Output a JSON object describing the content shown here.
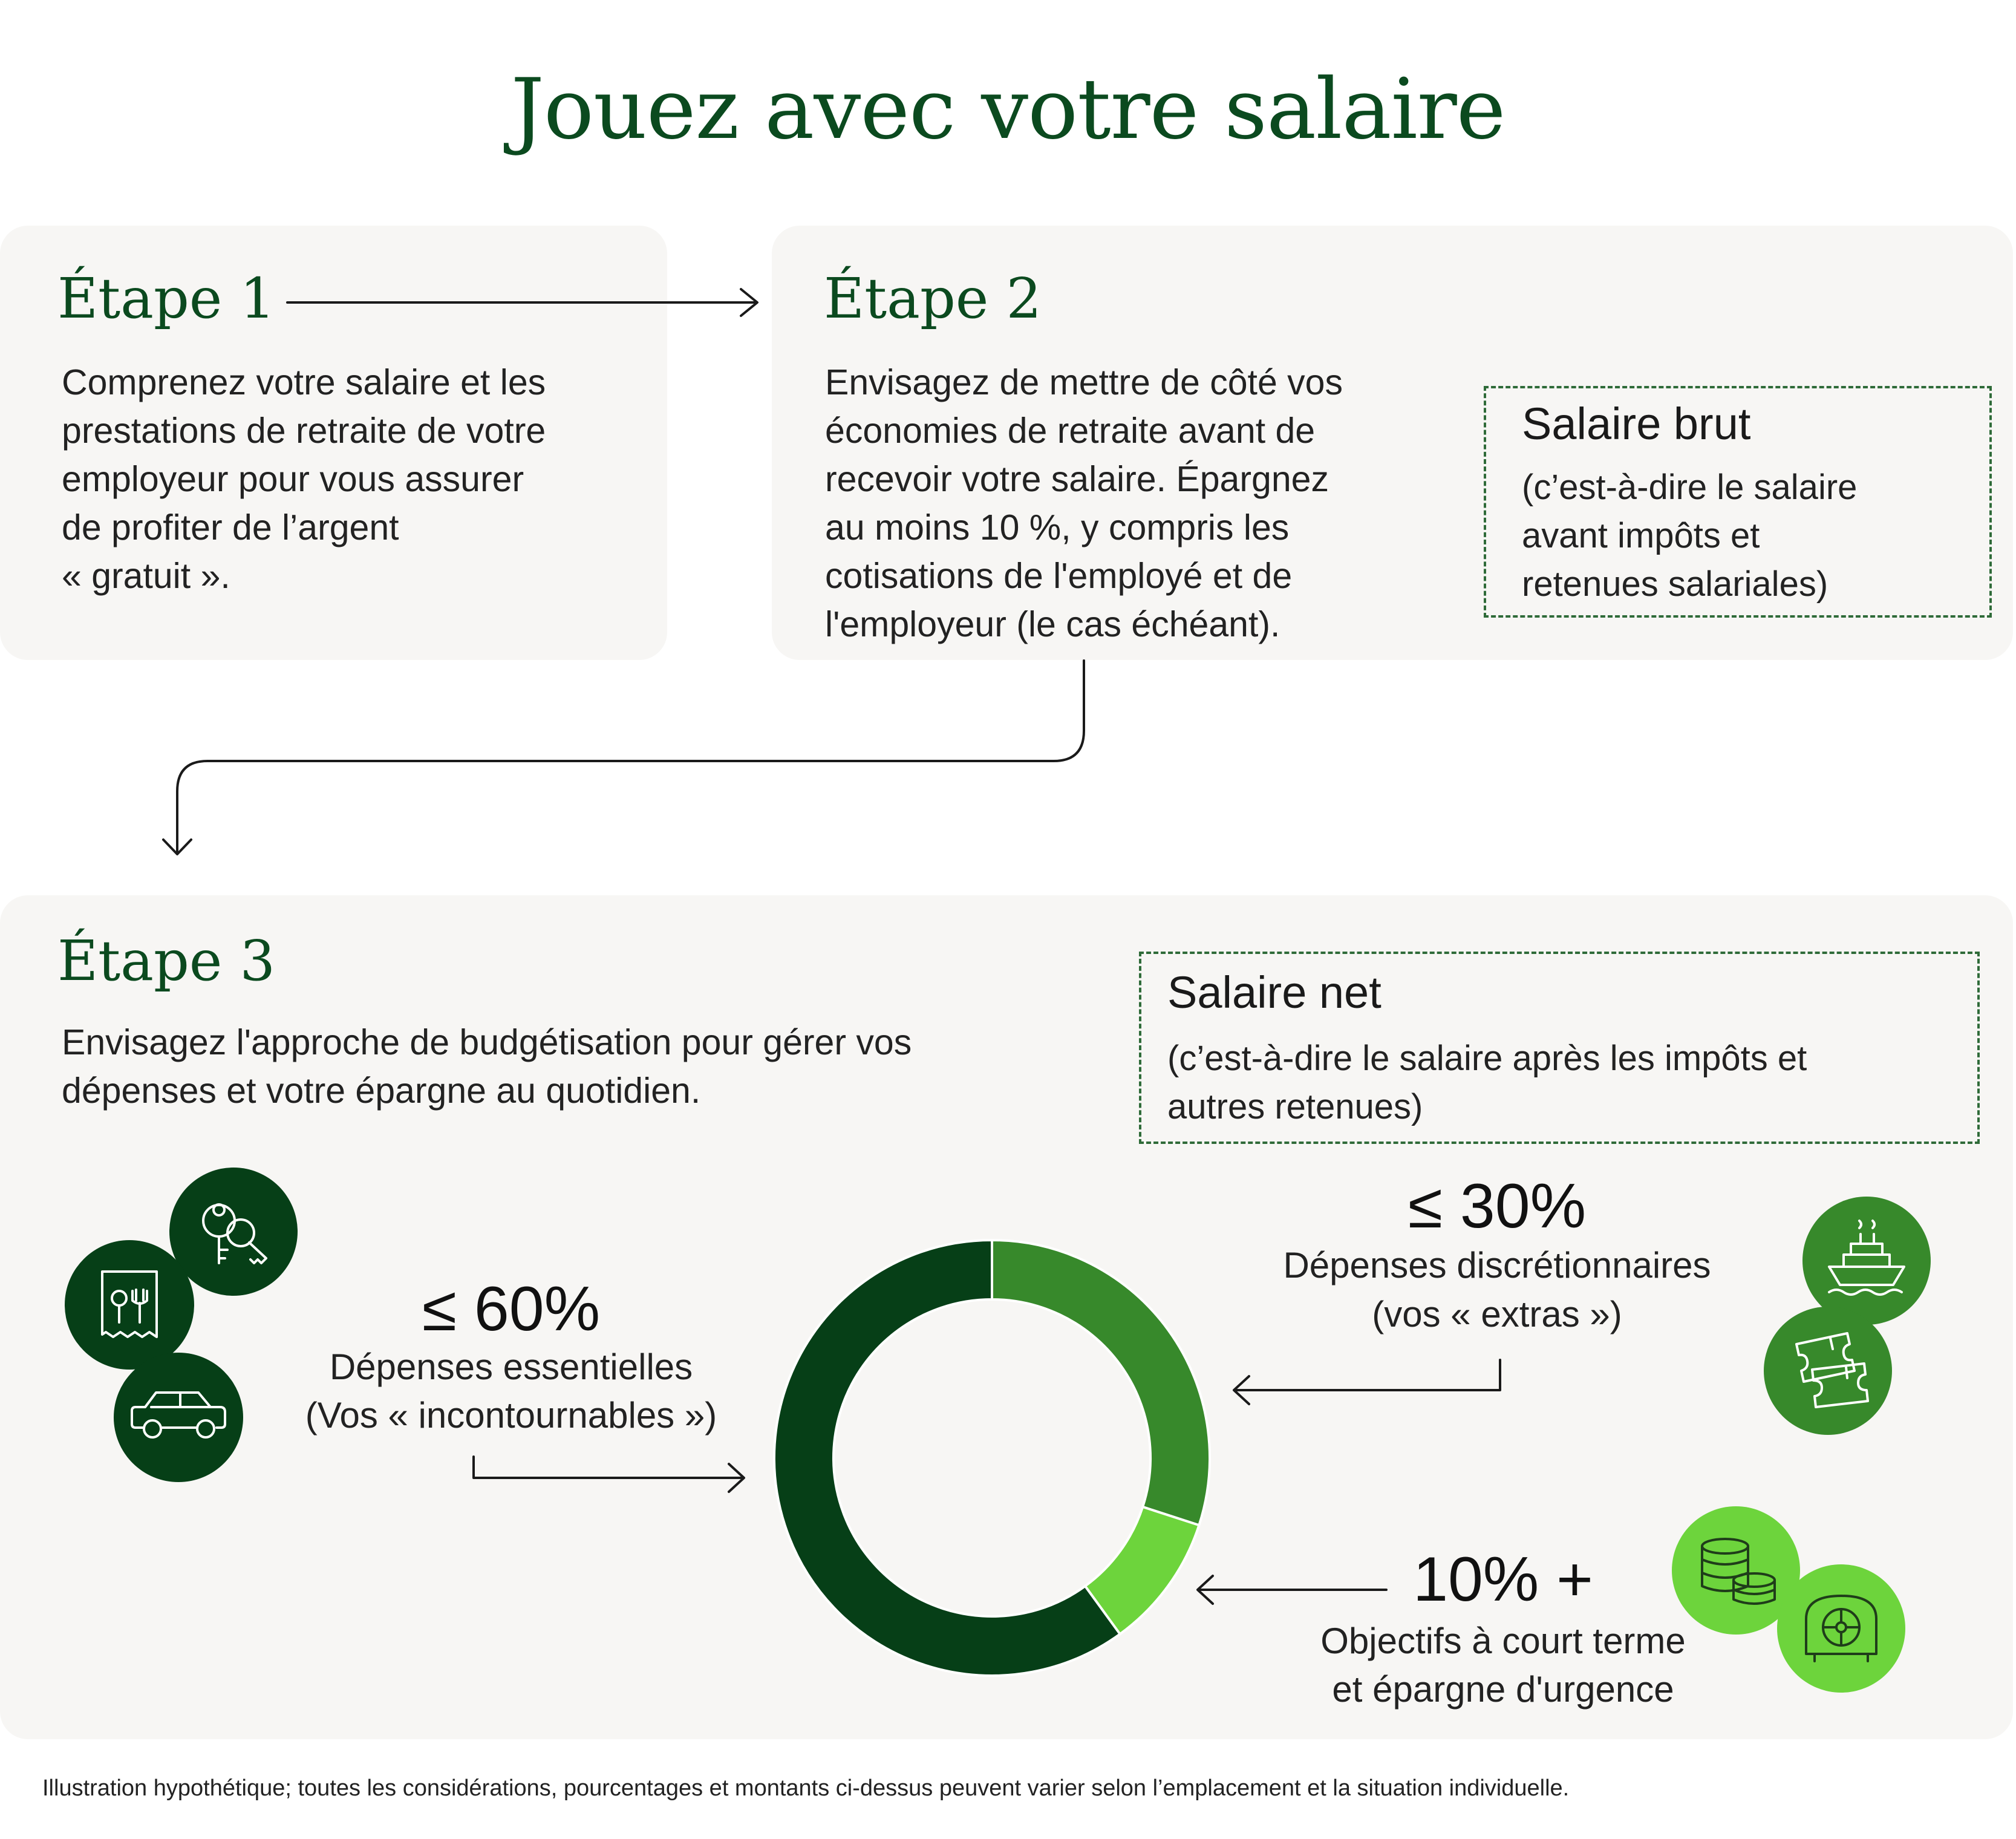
{
  "title": "Jouez avec votre salaire",
  "step1": {
    "title": "Étape 1",
    "lines": [
      "Comprenez votre salaire et les",
      "prestations de retraite de votre",
      "employeur pour vous assurer",
      "de profiter de l’argent",
      "« gratuit »."
    ]
  },
  "step2": {
    "title": "Étape 2",
    "lines": [
      "Envisagez de mettre de côté vos",
      "économies de retraite avant de",
      "recevoir votre salaire. Épargnez",
      "au moins 10 %, y compris les",
      "cotisations de l'employé et de",
      "l'employeur (le cas échéant)."
    ],
    "box": {
      "title": "Salaire brut",
      "lines": [
        "(c’est-à-dire le salaire",
        "avant impôts et",
        "retenues salariales)"
      ]
    }
  },
  "step3": {
    "title": "Étape 3",
    "lines": [
      "Envisagez l'approche de budgétisation pour gérer vos",
      "dépenses et votre épargne au quotidien."
    ],
    "box": {
      "title": "Salaire net",
      "lines": [
        "(c’est-à-dire le salaire après les impôts et",
        "autres retenues)"
      ]
    }
  },
  "segments": {
    "essential": {
      "pct": "≤ 60%",
      "line1": "Dépenses essentielles",
      "line2": "(Vos « incontournables »)"
    },
    "discretionary": {
      "pct": "≤ 30%",
      "line1": "Dépenses discrétionnaires",
      "line2": "(vos « extras »)"
    },
    "savings": {
      "pct": "10% +",
      "line1": "Objectifs à court terme",
      "line2": "et épargne d'urgence"
    }
  },
  "chart_data": {
    "type": "pie",
    "donut": true,
    "categories": [
      "Dépenses discrétionnaires",
      "Objectifs à court terme et épargne d'urgence",
      "Dépenses essentielles"
    ],
    "values": [
      30,
      10,
      60
    ],
    "colors": [
      "#37892b",
      "#6dd43c",
      "#063f17"
    ]
  },
  "colors": {
    "dark_green": "#063f17",
    "mid_green": "#37892b",
    "light_green": "#6dd43c",
    "card_bg": "#f7f6f4"
  },
  "icons": {
    "essential": [
      "keys-icon",
      "receipt-fork-icon",
      "car-icon"
    ],
    "discretionary": [
      "cruise-ship-icon",
      "tickets-icon"
    ],
    "savings": [
      "coins-icon",
      "safe-icon"
    ]
  },
  "footnote": "Illustration hypothétique; toutes les considérations, pourcentages et montants ci-dessus peuvent varier selon l’emplacement et la situation individuelle."
}
